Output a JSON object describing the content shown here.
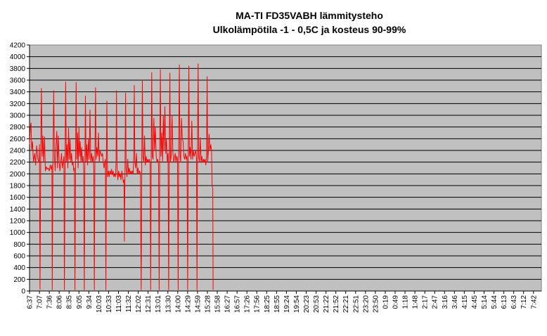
{
  "chart_data": {
    "type": "line",
    "title": "MA-TI FD35VABH lämmitysteho",
    "subtitle": "Ulkolämpötila  -1 - 0,5C ja kosteus 90-99%",
    "xlabel": "",
    "ylabel": "",
    "ylim": [
      0,
      4200
    ],
    "yticks": [
      0,
      200,
      400,
      600,
      800,
      1000,
      1200,
      1400,
      1600,
      1800,
      2000,
      2200,
      2400,
      2600,
      2800,
      3000,
      3200,
      3400,
      3600,
      3800,
      4000,
      4200
    ],
    "xticks": [
      "6:37",
      "7:07",
      "7:36",
      "8:06",
      "8:35",
      "9:05",
      "9:34",
      "10:03",
      "10:33",
      "11:03",
      "11:32",
      "12:02",
      "12:31",
      "13:01",
      "13:30",
      "14:00",
      "14:29",
      "14:59",
      "15:28",
      "15:58",
      "16:27",
      "16:57",
      "17:26",
      "17:56",
      "18:25",
      "18:55",
      "19:24",
      "19:54",
      "20:23",
      "20:53",
      "21:22",
      "21:52",
      "22:21",
      "22:51",
      "23:20",
      "23:50",
      "0:19",
      "0:49",
      "1:18",
      "1:48",
      "2:17",
      "2:47",
      "3:16",
      "3:46",
      "4:15",
      "4:45",
      "5:14",
      "5:44",
      "6:13",
      "6:43",
      "7:12",
      "7:42"
    ],
    "grid": true,
    "legend": "none",
    "series": [
      {
        "name": "lämmitysteho",
        "color": "#ff0000",
        "points": [
          [
            0.0,
            2500
          ],
          [
            0.08,
            2800
          ],
          [
            0.15,
            2870
          ],
          [
            0.22,
            2400
          ],
          [
            0.3,
            2550
          ],
          [
            0.4,
            2200
          ],
          [
            0.52,
            2350
          ],
          [
            0.62,
            2150
          ],
          [
            0.72,
            2480
          ],
          [
            0.85,
            2250
          ],
          [
            0.95,
            2200
          ],
          [
            1.0,
            2500
          ],
          [
            1.06,
            30
          ],
          [
            1.14,
            2400
          ],
          [
            1.2,
            3460
          ],
          [
            1.28,
            2300
          ],
          [
            1.35,
            2650
          ],
          [
            1.43,
            2200
          ],
          [
            1.52,
            2630
          ],
          [
            1.6,
            2050
          ],
          [
            1.7,
            2120
          ],
          [
            1.8,
            2080
          ],
          [
            1.9,
            2100
          ],
          [
            2.0,
            2050
          ],
          [
            2.1,
            2150
          ],
          [
            2.2,
            2080
          ],
          [
            2.27,
            2150
          ],
          [
            2.3,
            20
          ],
          [
            2.37,
            2200
          ],
          [
            2.45,
            3420
          ],
          [
            2.52,
            2300
          ],
          [
            2.6,
            2050
          ],
          [
            2.68,
            2500
          ],
          [
            2.76,
            2730
          ],
          [
            2.84,
            2100
          ],
          [
            2.92,
            2650
          ],
          [
            3.0,
            2200
          ],
          [
            3.08,
            2050
          ],
          [
            3.16,
            2200
          ],
          [
            3.24,
            2350
          ],
          [
            3.32,
            2100
          ],
          [
            3.4,
            2200
          ],
          [
            3.48,
            2300
          ],
          [
            3.53,
            20
          ],
          [
            3.6,
            2300
          ],
          [
            3.66,
            3570
          ],
          [
            3.72,
            2200
          ],
          [
            3.8,
            2500
          ],
          [
            3.88,
            2100
          ],
          [
            3.95,
            2780
          ],
          [
            4.03,
            2250
          ],
          [
            4.1,
            2600
          ],
          [
            4.18,
            2200
          ],
          [
            4.25,
            2350
          ],
          [
            4.33,
            2150
          ],
          [
            4.4,
            2200
          ],
          [
            4.48,
            2050
          ],
          [
            4.54,
            2100
          ],
          [
            4.6,
            20
          ],
          [
            4.66,
            2350
          ],
          [
            4.72,
            3560
          ],
          [
            4.78,
            2250
          ],
          [
            4.85,
            2700
          ],
          [
            4.92,
            2100
          ],
          [
            5.0,
            2800
          ],
          [
            5.06,
            2300
          ],
          [
            5.13,
            2550
          ],
          [
            5.2,
            2200
          ],
          [
            5.28,
            2450
          ],
          [
            5.35,
            2200
          ],
          [
            5.42,
            2300
          ],
          [
            5.48,
            2100
          ],
          [
            5.54,
            20
          ],
          [
            5.6,
            2100
          ],
          [
            5.66,
            3330
          ],
          [
            5.72,
            2200
          ],
          [
            5.8,
            2500
          ],
          [
            5.88,
            2150
          ],
          [
            5.96,
            2600
          ],
          [
            6.04,
            2250
          ],
          [
            6.12,
            3090
          ],
          [
            6.2,
            2200
          ],
          [
            6.28,
            2350
          ],
          [
            6.36,
            2200
          ],
          [
            6.44,
            2300
          ],
          [
            6.5,
            2100
          ],
          [
            6.56,
            20
          ],
          [
            6.62,
            2300
          ],
          [
            6.68,
            3470
          ],
          [
            6.74,
            2250
          ],
          [
            6.82,
            2450
          ],
          [
            6.9,
            2300
          ],
          [
            6.98,
            2700
          ],
          [
            7.06,
            2200
          ],
          [
            7.14,
            2400
          ],
          [
            7.22,
            2350
          ],
          [
            7.3,
            2300
          ],
          [
            7.38,
            2350
          ],
          [
            7.46,
            2200
          ],
          [
            7.54,
            2100
          ],
          [
            7.62,
            2200
          ],
          [
            7.68,
            2250
          ],
          [
            7.73,
            20
          ],
          [
            7.78,
            2150
          ],
          [
            7.83,
            3240
          ],
          [
            7.9,
            1950
          ],
          [
            7.98,
            2050
          ],
          [
            8.06,
            1950
          ],
          [
            8.14,
            2050
          ],
          [
            8.22,
            2000
          ],
          [
            8.3,
            2080
          ],
          [
            8.38,
            1980
          ],
          [
            8.46,
            2050
          ],
          [
            8.54,
            1950
          ],
          [
            8.62,
            2000
          ],
          [
            8.7,
            1950
          ],
          [
            8.76,
            2250
          ],
          [
            8.8,
            3420
          ],
          [
            8.86,
            2100
          ],
          [
            8.94,
            1900
          ],
          [
            9.02,
            2050
          ],
          [
            9.1,
            1950
          ],
          [
            9.18,
            2000
          ],
          [
            9.26,
            1900
          ],
          [
            9.34,
            2050
          ],
          [
            9.42,
            1950
          ],
          [
            9.5,
            1850
          ],
          [
            9.56,
            1900
          ],
          [
            9.6,
            850
          ],
          [
            9.66,
            2050
          ],
          [
            9.72,
            3380
          ],
          [
            9.78,
            2100
          ],
          [
            9.86,
            1950
          ],
          [
            9.94,
            2250
          ],
          [
            10.02,
            2000
          ],
          [
            10.1,
            2100
          ],
          [
            10.18,
            2000
          ],
          [
            10.26,
            2050
          ],
          [
            10.34,
            2000
          ],
          [
            10.42,
            2050
          ],
          [
            10.48,
            2000
          ],
          [
            10.55,
            2300
          ],
          [
            10.6,
            3510
          ],
          [
            10.66,
            2200
          ],
          [
            10.74,
            2100
          ],
          [
            10.82,
            2350
          ],
          [
            10.9,
            2000
          ],
          [
            10.98,
            2100
          ],
          [
            11.06,
            2000
          ],
          [
            11.14,
            2050
          ],
          [
            11.22,
            2000
          ],
          [
            11.3,
            20
          ],
          [
            11.36,
            2300
          ],
          [
            11.42,
            3600
          ],
          [
            11.48,
            2300
          ],
          [
            11.56,
            2200
          ],
          [
            11.64,
            2650
          ],
          [
            11.72,
            2150
          ],
          [
            11.8,
            2300
          ],
          [
            11.88,
            2200
          ],
          [
            11.96,
            2250
          ],
          [
            12.04,
            2200
          ],
          [
            12.12,
            2250
          ],
          [
            12.2,
            2200
          ],
          [
            12.26,
            20
          ],
          [
            12.32,
            2300
          ],
          [
            12.37,
            3730
          ],
          [
            12.43,
            2300
          ],
          [
            12.5,
            2250
          ],
          [
            12.58,
            2950
          ],
          [
            12.66,
            2400
          ],
          [
            12.74,
            2800
          ],
          [
            12.82,
            2300
          ],
          [
            12.9,
            2200
          ],
          [
            12.98,
            2250
          ],
          [
            13.06,
            2150
          ],
          [
            13.12,
            20
          ],
          [
            13.18,
            2300
          ],
          [
            13.24,
            3780
          ],
          [
            13.3,
            2300
          ],
          [
            13.38,
            2700
          ],
          [
            13.46,
            2200
          ],
          [
            13.54,
            3000
          ],
          [
            13.62,
            2400
          ],
          [
            13.7,
            3150
          ],
          [
            13.78,
            2350
          ],
          [
            13.86,
            2600
          ],
          [
            13.94,
            2200
          ],
          [
            14.02,
            2350
          ],
          [
            14.08,
            20
          ],
          [
            14.14,
            2300
          ],
          [
            14.2,
            3720
          ],
          [
            14.26,
            2200
          ],
          [
            14.34,
            2300
          ],
          [
            14.42,
            3000
          ],
          [
            14.5,
            2400
          ],
          [
            14.58,
            2200
          ],
          [
            14.66,
            2250
          ],
          [
            14.74,
            2350
          ],
          [
            14.82,
            2200
          ],
          [
            14.9,
            2300
          ],
          [
            14.98,
            2250
          ],
          [
            15.04,
            20
          ],
          [
            15.1,
            2450
          ],
          [
            15.16,
            3860
          ],
          [
            15.22,
            2350
          ],
          [
            15.3,
            2200
          ],
          [
            15.38,
            2950
          ],
          [
            15.46,
            2600
          ],
          [
            15.54,
            2550
          ],
          [
            15.62,
            2300
          ],
          [
            15.7,
            2250
          ],
          [
            15.78,
            2350
          ],
          [
            15.86,
            2250
          ],
          [
            15.94,
            2300
          ],
          [
            16.0,
            20
          ],
          [
            16.06,
            2400
          ],
          [
            16.12,
            3840
          ],
          [
            16.18,
            2300
          ],
          [
            16.26,
            2450
          ],
          [
            16.34,
            2250
          ],
          [
            16.42,
            2900
          ],
          [
            16.5,
            2250
          ],
          [
            16.58,
            2400
          ],
          [
            16.66,
            2300
          ],
          [
            16.74,
            2350
          ],
          [
            16.82,
            2400
          ],
          [
            16.9,
            2250
          ],
          [
            16.95,
            20
          ],
          [
            17.0,
            2400
          ],
          [
            17.06,
            3880
          ],
          [
            17.12,
            2300
          ],
          [
            17.2,
            2200
          ],
          [
            17.28,
            2620
          ],
          [
            17.36,
            2200
          ],
          [
            17.44,
            2300
          ],
          [
            17.52,
            2200
          ],
          [
            17.6,
            2250
          ],
          [
            17.68,
            2200
          ],
          [
            17.76,
            2250
          ],
          [
            17.84,
            2150
          ],
          [
            17.92,
            2300
          ],
          [
            17.97,
            3660
          ],
          [
            18.03,
            2200
          ],
          [
            18.1,
            2400
          ],
          [
            18.18,
            2680
          ],
          [
            18.26,
            2400
          ],
          [
            18.34,
            2500
          ],
          [
            18.42,
            2400
          ],
          [
            18.48,
            1800
          ],
          [
            18.54,
            1750
          ],
          [
            18.58,
            20
          ]
        ]
      }
    ]
  }
}
